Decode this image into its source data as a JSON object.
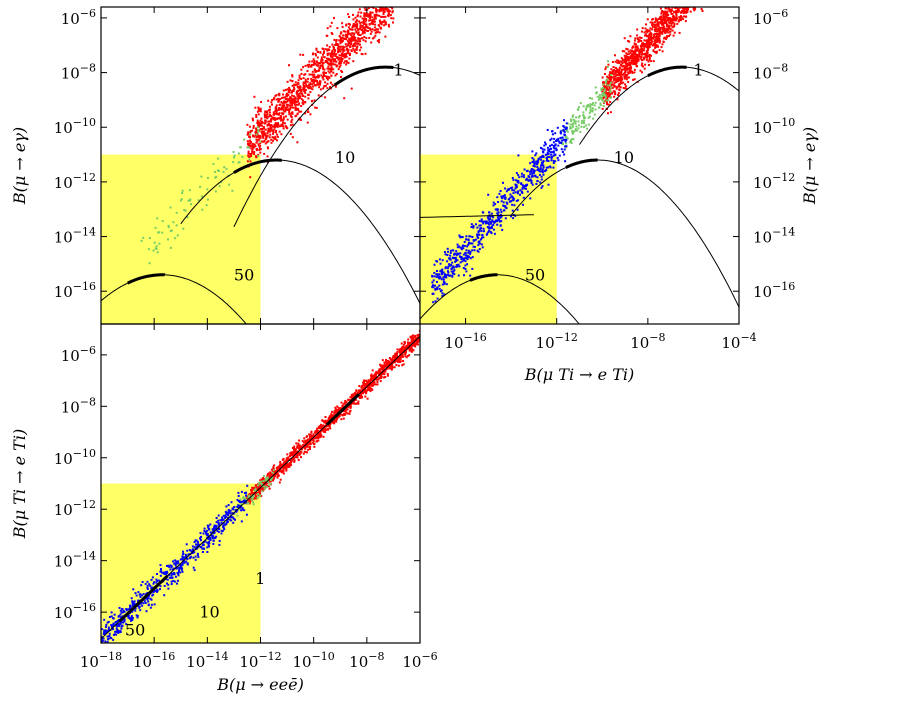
{
  "chart_data": [
    {
      "name": "panel-meg-vs-meee",
      "type": "scatter",
      "xscale": "log",
      "yscale": "log",
      "xlim_exp": [
        -18,
        -6
      ],
      "ylim_exp": [
        -17.2,
        -5.6
      ],
      "x_tick_exps": [
        -18,
        -16,
        -14,
        -12,
        -10,
        -8,
        -6
      ],
      "y_tick_exps": [
        -16,
        -14,
        -12,
        -10,
        -8,
        -6
      ],
      "x_tick_labels": [],
      "y_tick_labels": [
        "10^-16",
        "10^-14",
        "10^-12",
        "10^-10",
        "10^-8",
        "10^-6"
      ],
      "xlabel": "",
      "ylabel": "B(μ → eγ)",
      "allowed_region": {
        "color": "#ffff66",
        "x_max_exp": -12,
        "y_max_exp": -11
      },
      "curve_labels": [
        {
          "text": "1",
          "x_exp": -7.0,
          "y_exp": -8.1
        },
        {
          "text": "10",
          "x_exp": -9.2,
          "y_exp": -11.3
        },
        {
          "text": "50",
          "x_exp": -13.0,
          "y_exp": -15.6
        }
      ],
      "series_colors": {
        "red": "#ff0000",
        "green": "#77cc66",
        "blue": "#0000ff",
        "black": "#000000"
      }
    },
    {
      "name": "panel-meg-vs-mti",
      "type": "scatter",
      "xscale": "log",
      "yscale": "log",
      "xlim_exp": [
        -18,
        -4
      ],
      "ylim_exp": [
        -17.2,
        -5.6
      ],
      "x_tick_exps": [
        -16,
        -12,
        -8,
        -4
      ],
      "y_tick_exps": [
        -16,
        -14,
        -12,
        -10,
        -8,
        -6
      ],
      "x_tick_labels": [
        "10^-16",
        "10^-12",
        "10^-8",
        "10^-4"
      ],
      "y_tick_labels": [
        "10^-16",
        "10^-14",
        "10^-12",
        "10^-10",
        "10^-8",
        "10^-6"
      ],
      "xlabel": "B(μ Ti → e Ti)",
      "ylabel": "B(μ → eγ)",
      "allowed_region": {
        "color": "#ffff66",
        "x_max_exp": -12,
        "y_max_exp": -11
      },
      "curve_labels": [
        {
          "text": "1",
          "x_exp": -6.0,
          "y_exp": -8.1
        },
        {
          "text": "10",
          "x_exp": -9.5,
          "y_exp": -11.3
        },
        {
          "text": "50",
          "x_exp": -13.4,
          "y_exp": -15.6
        }
      ],
      "series_colors": {
        "red": "#ff0000",
        "green": "#77cc66",
        "blue": "#0000ff",
        "black": "#000000"
      }
    },
    {
      "name": "panel-mti-vs-meee",
      "type": "scatter",
      "xscale": "log",
      "yscale": "log",
      "xlim_exp": [
        -18,
        -6
      ],
      "ylim_exp": [
        -17.2,
        -4.8
      ],
      "x_tick_exps": [
        -18,
        -16,
        -14,
        -12,
        -10,
        -8,
        -6
      ],
      "y_tick_exps": [
        -16,
        -14,
        -12,
        -10,
        -8,
        -6
      ],
      "x_tick_labels": [
        "10^-18",
        "10^-16",
        "10^-14",
        "10^-12",
        "10^-10",
        "10^-8",
        "10^-6"
      ],
      "y_tick_labels": [
        "10^-16",
        "10^-14",
        "10^-12",
        "10^-10",
        "10^-8",
        "10^-6"
      ],
      "xlabel": "B(μ → eeē)",
      "ylabel": "B(μ Ti → e Ti)",
      "allowed_region": {
        "color": "#ffff66",
        "x_max_exp": -12,
        "y_max_exp": -11
      },
      "curve_labels": [
        {
          "text": "1",
          "x_exp": -12.2,
          "y_exp": -14.9
        },
        {
          "text": "10",
          "x_exp": -14.3,
          "y_exp": -16.2
        },
        {
          "text": "50",
          "x_exp": -17.1,
          "y_exp": -16.9
        }
      ],
      "series_colors": {
        "red": "#ff0000",
        "green": "#77cc66",
        "blue": "#0000ff",
        "black": "#000000"
      }
    }
  ]
}
